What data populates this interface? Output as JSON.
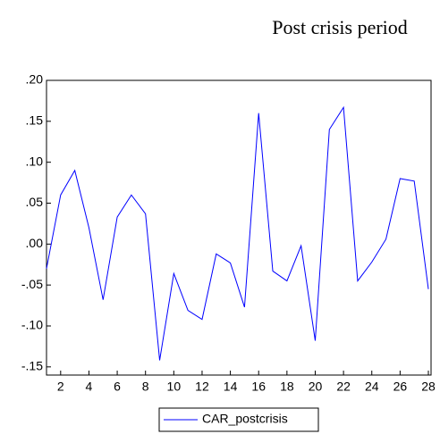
{
  "chart_data": {
    "type": "line",
    "title": "Post crisis period",
    "x": [
      1,
      2,
      3,
      4,
      5,
      6,
      7,
      8,
      9,
      10,
      11,
      12,
      13,
      14,
      15,
      16,
      17,
      18,
      19,
      20,
      21,
      22,
      23,
      24,
      25,
      26,
      27,
      28
    ],
    "series": [
      {
        "name": "CAR_postcrisis",
        "color": "#0000ff",
        "values": [
          -0.03,
          0.06,
          0.09,
          0.02,
          -0.068,
          0.033,
          0.06,
          0.037,
          -0.142,
          -0.036,
          -0.081,
          -0.092,
          -0.012,
          -0.023,
          -0.077,
          0.16,
          -0.033,
          -0.045,
          -0.002,
          -0.118,
          0.14,
          0.167,
          -0.045,
          -0.022,
          0.006,
          0.08,
          0.077,
          -0.055
        ]
      }
    ],
    "xlim": [
      1,
      28
    ],
    "xticks": [
      2,
      4,
      6,
      8,
      10,
      12,
      14,
      16,
      18,
      20,
      22,
      24,
      26,
      28
    ],
    "ylim": [
      -0.16,
      0.2
    ],
    "yticks": [
      {
        "value": 0.2,
        "label": ".20"
      },
      {
        "value": 0.15,
        "label": ".15"
      },
      {
        "value": 0.1,
        "label": ".10"
      },
      {
        "value": 0.05,
        "label": ".05"
      },
      {
        "value": 0,
        "label": ".00"
      },
      {
        "value": -0.05,
        "label": "-.05"
      },
      {
        "value": -0.1,
        "label": "-.10"
      },
      {
        "value": -0.15,
        "label": "-.15"
      }
    ]
  }
}
